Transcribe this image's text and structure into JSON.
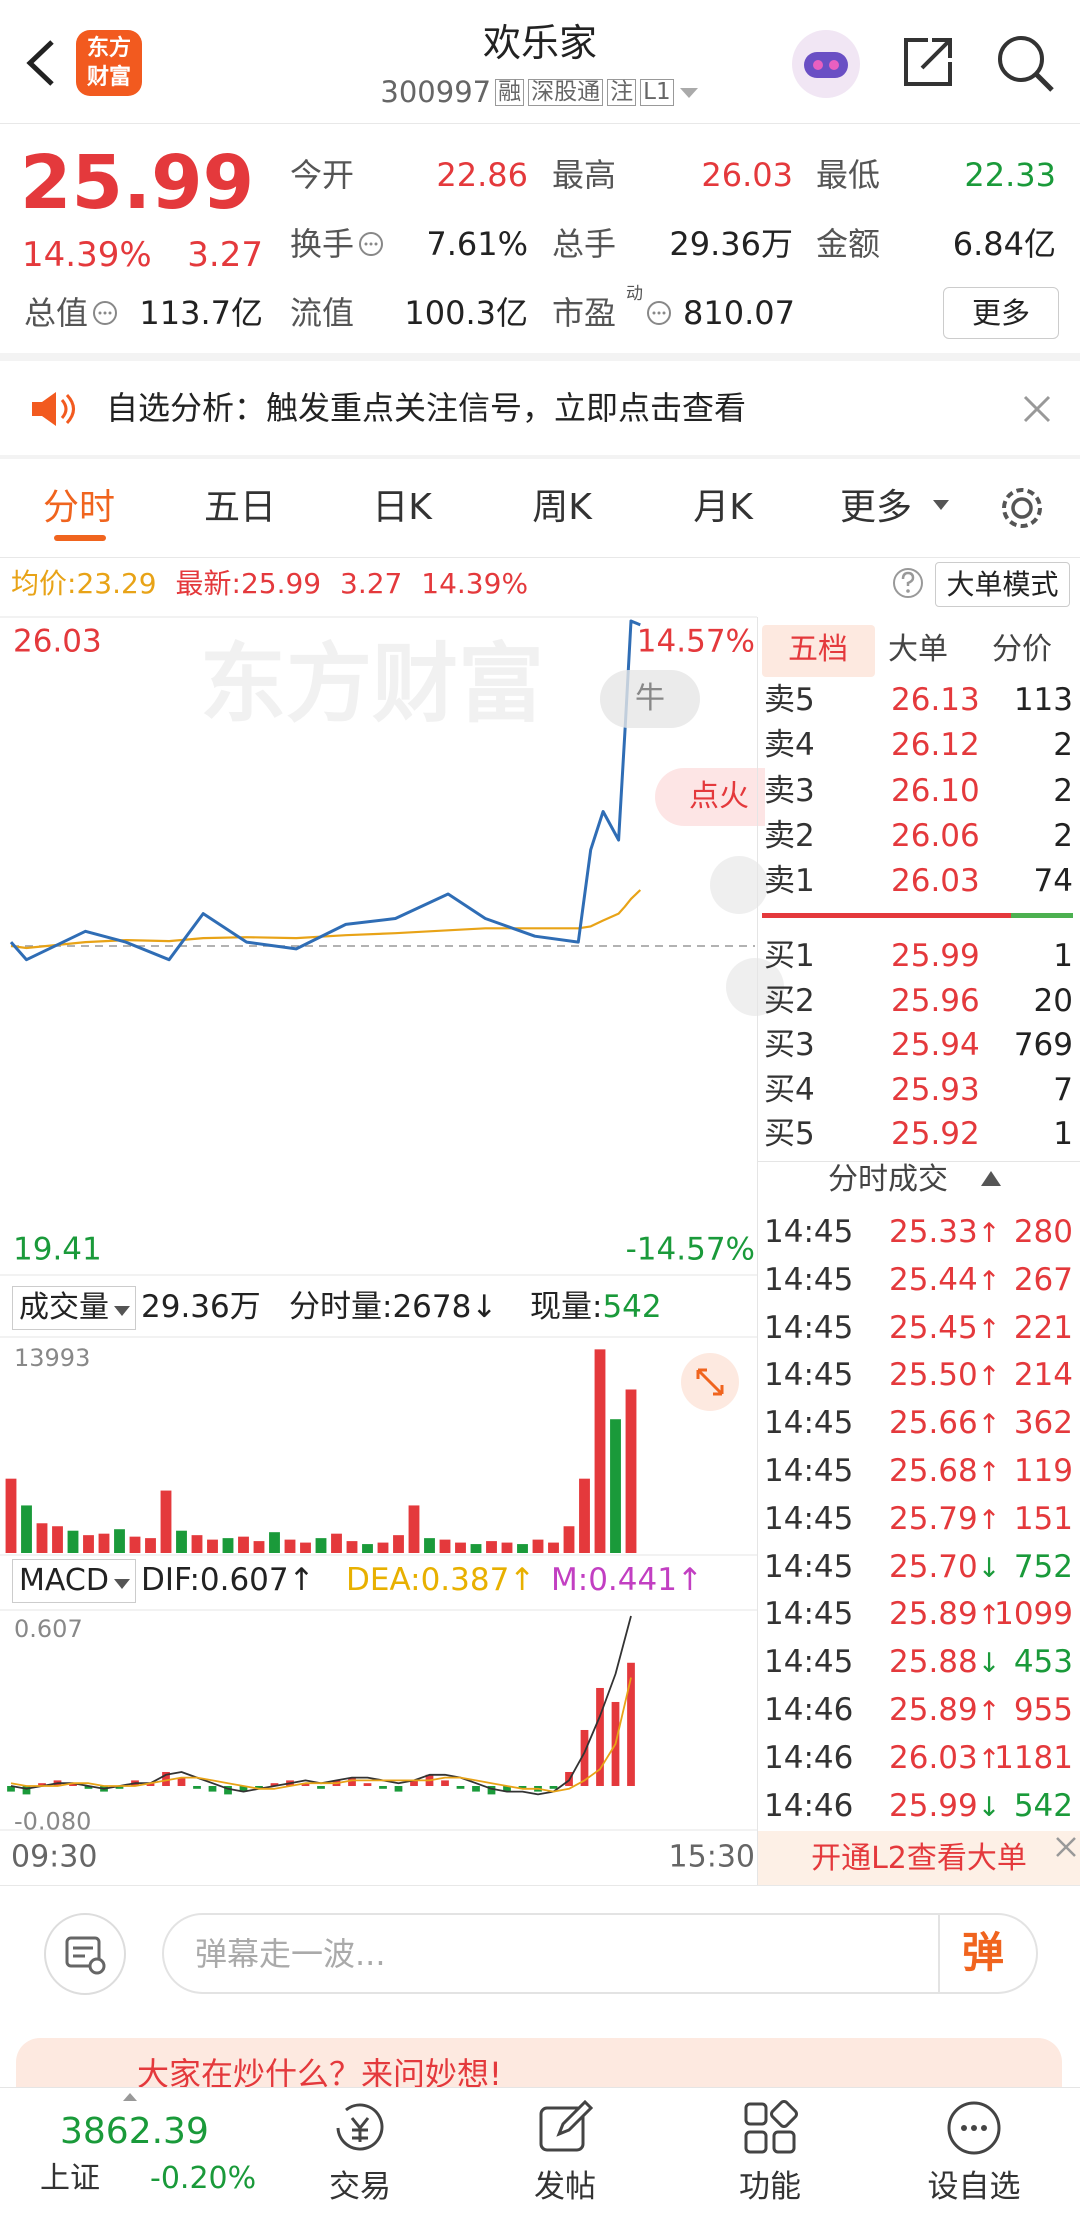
{
  "header": {
    "logo": [
      "东方",
      "财富"
    ],
    "title": "欢乐家",
    "code": "300997",
    "tags": [
      "融",
      "深股通",
      "注",
      "L1"
    ]
  },
  "quote": {
    "price": "25.99",
    "change_pct": "14.39%",
    "change": "3.27",
    "fields": [
      {
        "label": "今开",
        "value": "22.86"
      },
      {
        "label": "最高",
        "value": "26.03"
      },
      {
        "label": "最低",
        "value": "22.33"
      },
      {
        "label": "换手",
        "value": "7.61%"
      },
      {
        "label": "总手",
        "value": "29.36万"
      },
      {
        "label": "金额",
        "value": "6.84亿"
      },
      {
        "label": "总值",
        "value": "113.7亿"
      },
      {
        "label": "流值",
        "value": "100.3亿"
      },
      {
        "label": "市盈",
        "sup": "动",
        "value": "810.07"
      }
    ],
    "more": "更多"
  },
  "notice": {
    "text": "自选分析：触发重点关注信号，立即点击查看"
  },
  "tabs": [
    "分时",
    "五日",
    "日K",
    "周K",
    "月K",
    "更多"
  ],
  "info": {
    "avg_label": "均价:",
    "avg": "23.29",
    "last_label": "最新:",
    "last": "25.99",
    "change": "3.27",
    "pct": "14.39%",
    "mode": "大单模式"
  },
  "overlays": {
    "watermark": "东方财富",
    "bull": "牛",
    "ignite": "点火"
  },
  "chart_data": [
    {
      "type": "line",
      "xlim": [
        0,
        240
      ],
      "ylim": [
        19.41,
        26.03
      ],
      "yticks": [
        26.03,
        19.41
      ],
      "y2lim": [
        -14.57,
        14.57
      ],
      "y2ticks": [
        {
          "value": 14.57,
          "label": "14.57%"
        },
        {
          "value": -14.57,
          "label": "-14.57%"
        }
      ],
      "up_color": "#e4393c",
      "down_color": "#1a9a3a",
      "x": [
        0,
        5,
        24,
        37,
        51,
        62,
        76,
        92,
        108,
        124,
        141,
        153,
        169,
        183,
        187,
        191,
        196,
        198,
        200,
        203
      ],
      "series": [
        {
          "color": "#2f6db5",
          "values": [
            22.76,
            22.58,
            22.87,
            22.76,
            22.58,
            23.05,
            22.76,
            22.69,
            22.94,
            23.0,
            23.25,
            23.0,
            22.82,
            22.76,
            23.7,
            24.09,
            23.8,
            24.88,
            26.03,
            25.99
          ]
        },
        {
          "color": "#e8a317",
          "values": [
            22.72,
            22.7,
            22.76,
            22.78,
            22.77,
            22.8,
            22.81,
            22.8,
            22.83,
            22.85,
            22.88,
            22.9,
            22.9,
            22.9,
            22.92,
            22.98,
            23.05,
            23.12,
            23.2,
            23.29
          ]
        }
      ]
    },
    {
      "type": "bar",
      "label": "成交量",
      "total": "29.36万",
      "period": "分时量:2678↓",
      "current_label": "现量:",
      "current": "542",
      "xlim": [
        0,
        240
      ],
      "ylim": [
        0,
        13993
      ],
      "yticks": [
        13993
      ],
      "x": [
        0,
        5,
        10,
        15,
        20,
        25,
        30,
        35,
        40,
        45,
        50,
        55,
        60,
        65,
        70,
        75,
        80,
        85,
        90,
        95,
        100,
        105,
        110,
        115,
        120,
        125,
        130,
        135,
        140,
        145,
        150,
        155,
        160,
        165,
        170,
        175,
        180,
        185,
        190,
        195,
        200
      ],
      "series": [
        {
          "color": "#e4393c",
          "values": [
            5000,
            null,
            2000,
            1800,
            null,
            1200,
            1300,
            null,
            1100,
            1000,
            4200,
            null,
            1200,
            900,
            null,
            1100,
            800,
            null,
            900,
            700,
            null,
            1300,
            800,
            null,
            700,
            1200,
            3200,
            null,
            900,
            700,
            null,
            800,
            700,
            null,
            900,
            700,
            1800,
            5000,
            13700,
            null,
            11000
          ]
        },
        {
          "color": "#1a9a3a",
          "values": [
            null,
            3200,
            null,
            null,
            1500,
            null,
            null,
            1600,
            null,
            null,
            null,
            1500,
            null,
            null,
            1000,
            null,
            null,
            1400,
            null,
            null,
            1000,
            null,
            null,
            600,
            null,
            null,
            null,
            1000,
            null,
            null,
            600,
            null,
            null,
            600,
            null,
            null,
            null,
            null,
            null,
            9000,
            null
          ]
        }
      ]
    },
    {
      "type": "macd",
      "label": "MACD",
      "dif": "DIF:0.607↑",
      "dea": "DEA:0.387↑",
      "m": "M:0.441↑",
      "xlim": [
        0,
        240
      ],
      "xticks": [
        {
          "value": 0,
          "label": "09:30"
        },
        {
          "value": 240,
          "label": "15:30"
        }
      ],
      "ylim": [
        -0.15,
        0.607
      ],
      "yticks": [
        0.607,
        {
          "value": -0.08,
          "label": "-0.080"
        }
      ],
      "x": [
        0,
        5,
        10,
        15,
        20,
        25,
        30,
        35,
        40,
        45,
        50,
        55,
        60,
        65,
        70,
        75,
        80,
        85,
        90,
        95,
        100,
        105,
        110,
        115,
        120,
        125,
        130,
        135,
        140,
        145,
        150,
        155,
        160,
        165,
        170,
        175,
        180,
        185,
        190,
        195,
        200
      ],
      "histogram": {
        "up_color": "#e4393c",
        "down_color": "#1a9a3a",
        "values": [
          -0.02,
          -0.03,
          0.01,
          0.02,
          0.01,
          -0.01,
          -0.02,
          -0.01,
          0.02,
          0.01,
          0.05,
          0.03,
          -0.01,
          -0.02,
          -0.03,
          -0.02,
          -0.01,
          0.01,
          0.02,
          0.01,
          -0.01,
          0.02,
          0.03,
          0.01,
          -0.01,
          -0.02,
          0.02,
          0.04,
          0.02,
          -0.01,
          -0.02,
          -0.03,
          -0.02,
          -0.01,
          -0.02,
          -0.01,
          0.05,
          0.2,
          0.35,
          0.3,
          0.44
        ]
      },
      "series": [
        {
          "color": "#333333",
          "values": [
            0.0,
            -0.01,
            0.0,
            0.01,
            0.01,
            0.0,
            -0.01,
            0.0,
            0.01,
            0.01,
            0.04,
            0.05,
            0.03,
            0.01,
            -0.01,
            -0.02,
            -0.01,
            0.0,
            0.01,
            0.02,
            0.01,
            0.02,
            0.03,
            0.03,
            0.02,
            0.01,
            0.02,
            0.04,
            0.04,
            0.03,
            0.01,
            -0.01,
            -0.02,
            -0.02,
            -0.03,
            -0.02,
            0.02,
            0.12,
            0.25,
            0.4,
            0.607
          ]
        },
        {
          "color": "#e8a317",
          "values": [
            0.01,
            0.0,
            0.0,
            0.0,
            0.01,
            0.01,
            0.0,
            0.0,
            0.0,
            0.01,
            0.02,
            0.03,
            0.03,
            0.02,
            0.01,
            0.0,
            -0.01,
            -0.01,
            0.0,
            0.01,
            0.01,
            0.01,
            0.02,
            0.02,
            0.02,
            0.02,
            0.02,
            0.02,
            0.03,
            0.03,
            0.02,
            0.01,
            0.0,
            -0.01,
            -0.01,
            -0.02,
            -0.01,
            0.02,
            0.06,
            0.15,
            0.387
          ]
        }
      ]
    }
  ],
  "order_book": {
    "tabs": [
      "五档",
      "大单",
      "分价"
    ],
    "asks": [
      {
        "label": "卖5",
        "price": "26.13",
        "volume": "113"
      },
      {
        "label": "卖4",
        "price": "26.12",
        "volume": "2"
      },
      {
        "label": "卖3",
        "price": "26.10",
        "volume": "2"
      },
      {
        "label": "卖2",
        "price": "26.06",
        "volume": "2"
      },
      {
        "label": "卖1",
        "price": "26.03",
        "volume": "74"
      }
    ],
    "bids": [
      {
        "label": "买1",
        "price": "25.99",
        "volume": "1"
      },
      {
        "label": "买2",
        "price": "25.96",
        "volume": "20"
      },
      {
        "label": "买3",
        "price": "25.94",
        "volume": "769"
      },
      {
        "label": "买4",
        "price": "25.93",
        "volume": "7"
      },
      {
        "label": "买5",
        "price": "25.92",
        "volume": "1"
      }
    ],
    "trades_title": "分时成交",
    "trades": [
      {
        "time": "14:45",
        "price": "25.33",
        "arrow": "↑",
        "volume": "280",
        "color": "#e4393c"
      },
      {
        "time": "14:45",
        "price": "25.44",
        "arrow": "↑",
        "volume": "267",
        "color": "#e4393c"
      },
      {
        "time": "14:45",
        "price": "25.45",
        "arrow": "↑",
        "volume": "221",
        "color": "#e4393c"
      },
      {
        "time": "14:45",
        "price": "25.50",
        "arrow": "↑",
        "volume": "214",
        "color": "#e4393c"
      },
      {
        "time": "14:45",
        "price": "25.66",
        "arrow": "↑",
        "volume": "362",
        "color": "#e4393c"
      },
      {
        "time": "14:45",
        "price": "25.68",
        "arrow": "↑",
        "volume": "119",
        "color": "#e4393c"
      },
      {
        "time": "14:45",
        "price": "25.79",
        "arrow": "↑",
        "volume": "151",
        "color": "#e4393c"
      },
      {
        "time": "14:45",
        "price": "25.70",
        "arrow": "↓",
        "volume": "752",
        "color": "#1a9a3a"
      },
      {
        "time": "14:45",
        "price": "25.89",
        "arrow": "↑",
        "volume": "1099",
        "color": "#e4393c"
      },
      {
        "time": "14:45",
        "price": "25.88",
        "arrow": "↓",
        "volume": "453",
        "color": "#1a9a3a"
      },
      {
        "time": "14:46",
        "price": "25.89",
        "arrow": "↑",
        "volume": "955",
        "color": "#e4393c"
      },
      {
        "time": "14:46",
        "price": "26.03",
        "arrow": "↑",
        "volume": "1181",
        "color": "#e4393c"
      },
      {
        "time": "14:46",
        "price": "25.99",
        "arrow": "↓",
        "volume": "542",
        "color": "#1a9a3a"
      }
    ],
    "footer": "开通L2查看大单"
  },
  "composer": {
    "placeholder": "弹幕走一波...",
    "send": "弹"
  },
  "promo": {
    "text": "大家在炒什么？来问妙想!"
  },
  "nav": {
    "index_value": "3862.39",
    "index_name": "上证",
    "index_change": "-0.20%",
    "items": [
      "交易",
      "发帖",
      "功能",
      "设自选"
    ]
  }
}
